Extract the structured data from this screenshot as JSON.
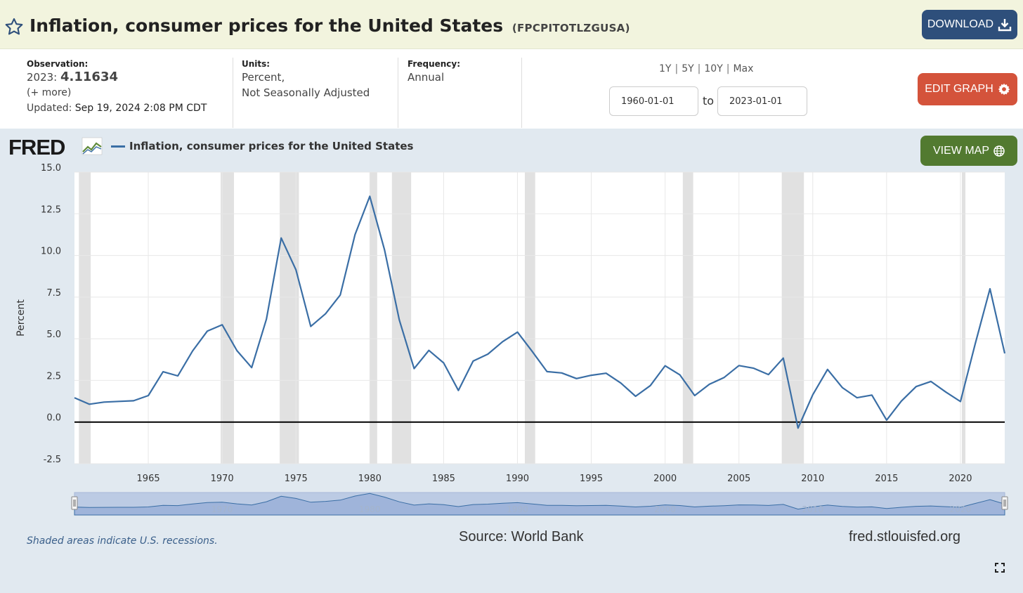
{
  "header": {
    "title": "Inflation, consumer prices for the United States",
    "series_id": "(FPCPITOTLZGUSA)",
    "download_label": "DOWNLOAD"
  },
  "info": {
    "observation_label": "Observation:",
    "observation_year": "2023:",
    "observation_value": "4.11634",
    "more_label": "(+ more)",
    "updated_label": "Updated:",
    "updated_value": "Sep 19, 2024 2:08 PM CDT",
    "units_label": "Units:",
    "units_line1": "Percent,",
    "units_line2": "Not Seasonally Adjusted",
    "frequency_label": "Frequency:",
    "frequency_value": "Annual",
    "ranges": [
      "1Y",
      "5Y",
      "10Y",
      "Max"
    ],
    "start_date": "1960-01-01",
    "to_label": "to",
    "end_date": "2023-01-01",
    "edit_label": "EDIT GRAPH"
  },
  "graph": {
    "logo": "FRED",
    "view_map_label": "VIEW MAP",
    "footnote": "Shaded areas indicate U.S. recessions.",
    "source": "Source: World Bank",
    "site": "fred.stlouisfed.org"
  },
  "colors": {
    "series": "#3a6ea5",
    "recession": "#e1e1e1",
    "download": "#2e4f7b",
    "edit": "#d4533b",
    "map": "#527a30"
  },
  "chart_data": {
    "type": "line",
    "title": "Inflation, consumer prices for the United States",
    "ylabel": "Percent",
    "xlabel": "",
    "ylim": [
      -2.5,
      15.0
    ],
    "xlim": [
      1960,
      2023
    ],
    "y_ticks": [
      "15.0",
      "12.5",
      "10.0",
      "7.5",
      "5.0",
      "2.5",
      "0.0",
      "-2.5"
    ],
    "x_ticks": [
      "1965",
      "1970",
      "1975",
      "1980",
      "1985",
      "1990",
      "1995",
      "2000",
      "2005",
      "2010",
      "2015",
      "2020"
    ],
    "grid": true,
    "legend": "top-left",
    "recessions": [
      [
        1960.3,
        1961.1
      ],
      [
        1969.9,
        1970.8
      ],
      [
        1973.9,
        1975.2
      ],
      [
        1980.0,
        1980.5
      ],
      [
        1981.5,
        1982.8
      ],
      [
        1990.5,
        1991.2
      ],
      [
        2001.2,
        2001.9
      ],
      [
        2007.9,
        2009.4
      ],
      [
        2020.1,
        2020.3
      ]
    ],
    "series": [
      {
        "name": "Inflation, consumer prices for the United States",
        "x": [
          1960,
          1961,
          1962,
          1963,
          1964,
          1965,
          1966,
          1967,
          1968,
          1969,
          1970,
          1971,
          1972,
          1973,
          1974,
          1975,
          1976,
          1977,
          1978,
          1979,
          1980,
          1981,
          1982,
          1983,
          1984,
          1985,
          1986,
          1987,
          1988,
          1989,
          1990,
          1991,
          1992,
          1993,
          1994,
          1995,
          1996,
          1997,
          1998,
          1999,
          2000,
          2001,
          2002,
          2003,
          2004,
          2005,
          2006,
          2007,
          2008,
          2009,
          2010,
          2011,
          2012,
          2013,
          2014,
          2015,
          2016,
          2017,
          2018,
          2019,
          2020,
          2021,
          2022,
          2023
        ],
        "values": [
          1.46,
          1.07,
          1.2,
          1.24,
          1.28,
          1.59,
          3.02,
          2.77,
          4.27,
          5.46,
          5.84,
          4.29,
          3.27,
          6.18,
          11.05,
          9.14,
          5.74,
          6.5,
          7.63,
          11.25,
          13.55,
          10.33,
          6.13,
          3.21,
          4.3,
          3.55,
          1.9,
          3.66,
          4.08,
          4.83,
          5.4,
          4.24,
          3.03,
          2.95,
          2.61,
          2.81,
          2.93,
          2.34,
          1.55,
          2.19,
          3.38,
          2.83,
          1.59,
          2.27,
          2.68,
          3.39,
          3.23,
          2.85,
          3.84,
          -0.36,
          1.64,
          3.16,
          2.07,
          1.46,
          1.62,
          0.12,
          1.26,
          2.13,
          2.44,
          1.81,
          1.23,
          4.7,
          8.0,
          4.12
        ]
      }
    ]
  }
}
